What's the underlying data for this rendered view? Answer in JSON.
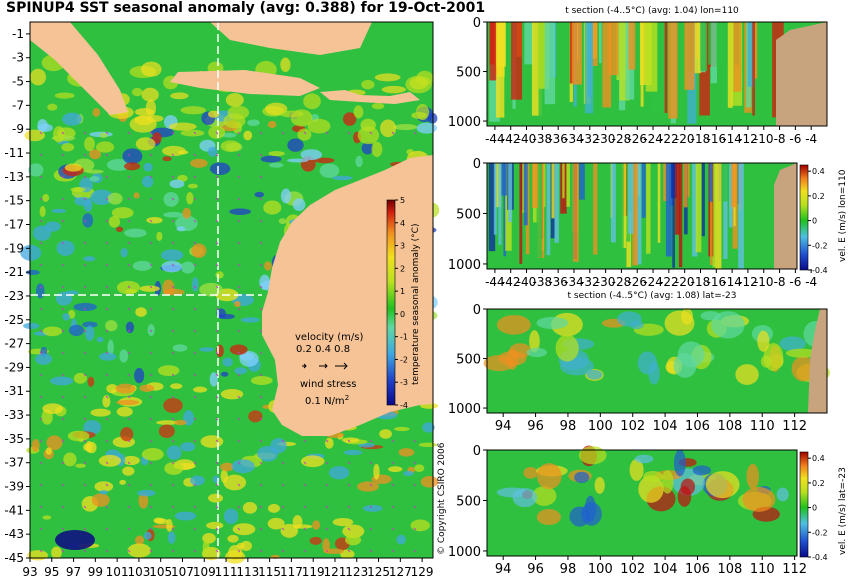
{
  "title": "SPINUP4 SST seasonal anomaly (avg: 0.388) for 19-Oct-2001",
  "copyright": "© Copyright CSIRO 2006",
  "colors": {
    "land": "#f5c396",
    "section_land": "#c8a47e",
    "guide_line": "#ffffff",
    "vector_marks": "#c040c0"
  },
  "chart_data": [
    {
      "type": "heatmap",
      "name": "SST map",
      "xticks": [
        "93",
        "95",
        "97",
        "99",
        "101",
        "103",
        "105",
        "107",
        "109",
        "111",
        "113",
        "115",
        "117",
        "119",
        "121",
        "123",
        "125",
        "127",
        "129"
      ],
      "yticks": [
        "-1",
        "-3",
        "-5",
        "-7",
        "-9",
        "-11",
        "-13",
        "-15",
        "-17",
        "-19",
        "-21",
        "-23",
        "-25",
        "-27",
        "-29",
        "-31",
        "-33",
        "-35",
        "-37",
        "-39",
        "-41",
        "-43",
        "-45"
      ],
      "xlim": [
        93,
        130
      ],
      "ylim": [
        -45,
        0
      ],
      "section_lon": 110,
      "section_lat": -23,
      "colorbar": {
        "label": "temperature seasonal anomaly (°C)",
        "ticks": [
          "5",
          "4",
          "3",
          "2",
          "1",
          "0",
          "-1",
          "-2",
          "-3",
          "-4"
        ],
        "range": [
          -4,
          5
        ]
      },
      "legend": {
        "velocity_title": "velocity (m/s)",
        "velocity_values": "0.2 0.4 0.8",
        "wind_title": "wind stress",
        "wind_value": "0.1 N/m",
        "wind_exp": "2"
      }
    },
    {
      "type": "heatmap",
      "name": "t section lon 110",
      "title": "t section (-4..5°C) (avg: 1.04) lon=110",
      "xticks": [
        "-44",
        "-42",
        "-40",
        "-38",
        "-36",
        "-34",
        "-32",
        "-30",
        "-28",
        "-26",
        "-24",
        "-22",
        "-20",
        "-18",
        "-16",
        "-14",
        "-12",
        "-10",
        "-8",
        "-6",
        "-4"
      ],
      "yticks": [
        "0",
        "500",
        "1000"
      ],
      "xlim": [
        -45,
        -2
      ],
      "ylim": [
        1050,
        0
      ]
    },
    {
      "type": "heatmap",
      "name": "vel E section lon 110",
      "xticks": [
        "-44",
        "-42",
        "-40",
        "-38",
        "-36",
        "-34",
        "-32",
        "-30",
        "-28",
        "-26",
        "-24",
        "-22",
        "-20",
        "-18",
        "-16",
        "-14",
        "-12",
        "-10",
        "-8",
        "-6",
        "-4"
      ],
      "yticks": [
        "0",
        "500",
        "1000"
      ],
      "xlim": [
        -45,
        -2
      ],
      "ylim": [
        1050,
        0
      ],
      "colorbar": {
        "label": "vel. E (m/s) lon=110",
        "ticks": [
          "0.4",
          "0.2",
          "0",
          "-0.2",
          "-0.4"
        ],
        "range": [
          -0.4,
          0.45
        ]
      }
    },
    {
      "type": "heatmap",
      "name": "t section lat -23",
      "title": "t section (-4..5°C) (avg: 1.08) lat=-23",
      "xticks": [
        "94",
        "96",
        "98",
        "100",
        "102",
        "104",
        "106",
        "108",
        "110",
        "112"
      ],
      "yticks": [
        "0",
        "500",
        "1000"
      ],
      "xlim": [
        93,
        114
      ],
      "ylim": [
        1050,
        0
      ]
    },
    {
      "type": "heatmap",
      "name": "vel E section lat -23",
      "xticks": [
        "94",
        "96",
        "98",
        "100",
        "102",
        "104",
        "106",
        "108",
        "110",
        "112"
      ],
      "yticks": [
        "0",
        "500",
        "1000"
      ],
      "xlim": [
        93,
        114
      ],
      "ylim": [
        1050,
        0
      ],
      "colorbar": {
        "label": "vel. E (m/s) lat=-23",
        "ticks": [
          "0.4",
          "0.2",
          "0",
          "-0.2",
          "-0.4"
        ],
        "range": [
          -0.4,
          0.45
        ]
      }
    }
  ]
}
